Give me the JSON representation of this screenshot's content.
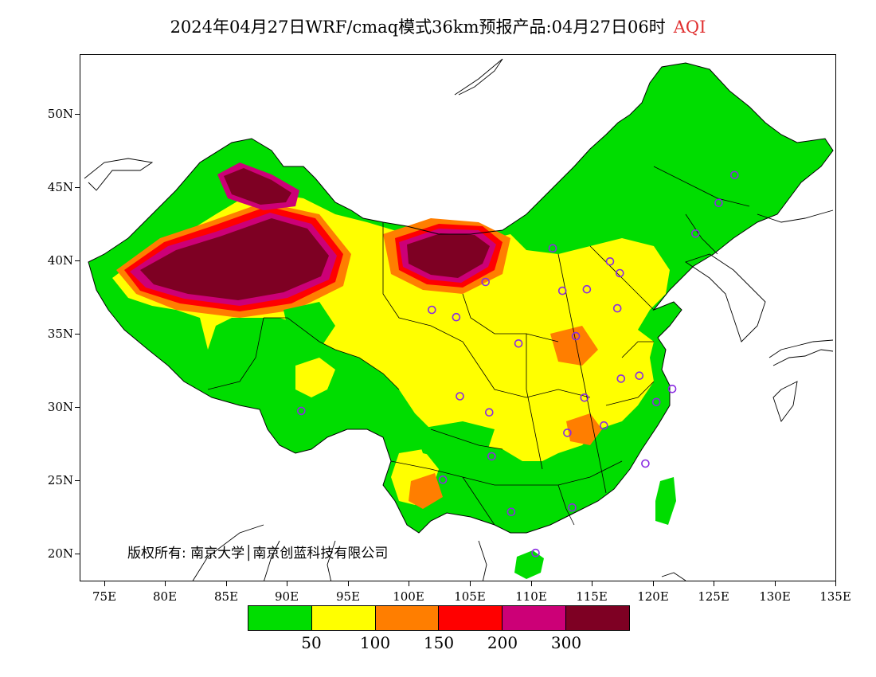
{
  "title": {
    "text": "2024年04月27日WRF/cmaq模式36km预报产品:04月27日06时",
    "variable": "AQI"
  },
  "axes": {
    "y_ticks": [
      "50N",
      "45N",
      "40N",
      "35N",
      "30N",
      "25N",
      "20N"
    ],
    "x_ticks": [
      "75E",
      "80E",
      "85E",
      "90E",
      "95E",
      "100E",
      "105E",
      "110E",
      "115E",
      "120E",
      "125E",
      "130E",
      "135E"
    ]
  },
  "copyright": "版权所有: 南京大学│南京创蓝科技有限公司",
  "legend": {
    "colors": [
      "#00dd00",
      "#ffff00",
      "#ff7e00",
      "#ff0000",
      "#cc0077",
      "#7e0023"
    ],
    "labels": [
      "50",
      "100",
      "150",
      "200",
      "300"
    ]
  },
  "map": {
    "lon_range": [
      73,
      135
    ],
    "lat_range": [
      18,
      54
    ],
    "stations": [
      [
        126.6,
        45.8
      ],
      [
        125.3,
        43.9
      ],
      [
        123.4,
        41.8
      ],
      [
        111.7,
        40.8
      ],
      [
        117.2,
        39.1
      ],
      [
        116.4,
        39.9
      ],
      [
        114.5,
        38.0
      ],
      [
        112.5,
        37.9
      ],
      [
        106.2,
        38.5
      ],
      [
        103.8,
        36.1
      ],
      [
        101.8,
        36.6
      ],
      [
        108.9,
        34.3
      ],
      [
        113.6,
        34.8
      ],
      [
        117.0,
        36.7
      ],
      [
        117.3,
        31.9
      ],
      [
        118.8,
        32.1
      ],
      [
        120.2,
        30.3
      ],
      [
        121.5,
        31.2
      ],
      [
        114.3,
        30.6
      ],
      [
        104.1,
        30.7
      ],
      [
        106.5,
        29.6
      ],
      [
        112.9,
        28.2
      ],
      [
        115.9,
        28.7
      ],
      [
        119.3,
        26.1
      ],
      [
        106.7,
        26.6
      ],
      [
        102.7,
        25.0
      ],
      [
        108.3,
        22.8
      ],
      [
        113.3,
        23.1
      ],
      [
        110.3,
        20.0
      ],
      [
        91.1,
        29.7
      ]
    ]
  }
}
